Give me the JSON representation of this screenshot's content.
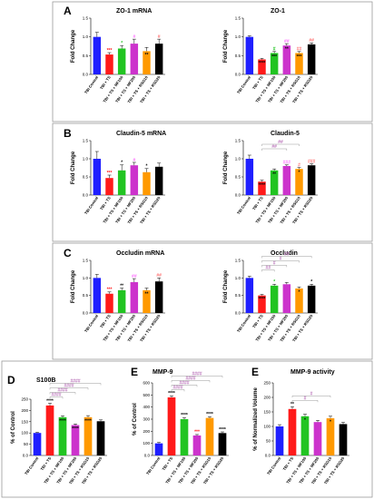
{
  "colors": [
    "#1f1fff",
    "#ff1a1a",
    "#22c422",
    "#cc33cc",
    "#ff9900",
    "#000000"
  ],
  "chart_data": [
    {
      "type": "bar",
      "panel": "A",
      "title": "ZO-1 mRNA",
      "ylabel": "Fold Change",
      "categories": [
        "TBI Control",
        "TBI + TS",
        "TBI + TS + MF100",
        "TBI + TS + MF200",
        "TBI + TS + RSG10",
        "TBI + TS + RSG20"
      ],
      "values": [
        1.0,
        0.53,
        0.69,
        0.82,
        0.62,
        0.82
      ],
      "errors": [
        0.12,
        0.05,
        0.08,
        0.12,
        0.1,
        0.12
      ],
      "ylim": [
        0,
        1.5
      ],
      "yticks": [
        0.0,
        0.5,
        1.0,
        1.5
      ],
      "sig_above": [
        "",
        "***",
        "*",
        "#",
        "",
        "#"
      ],
      "sig_above_colors": [
        "",
        "#ff1a1a",
        "#22c422",
        "#ff80ff",
        "",
        "#ff8080"
      ],
      "sig_inside": [
        "",
        "",
        "",
        "",
        "**",
        ""
      ]
    },
    {
      "type": "bar",
      "panel": "",
      "title": "ZO-1",
      "ylabel": "Fold Change",
      "categories": [
        "TBI Control",
        "TBI + TS",
        "TBI + TS + MF100",
        "TBI + TS + MF200",
        "TBI + TS + RSG10",
        "TBI + TS + RSG20"
      ],
      "values": [
        1.0,
        0.4,
        0.57,
        0.77,
        0.57,
        0.8
      ],
      "errors": [
        0.03,
        0.03,
        0.04,
        0.05,
        0.04,
        0.04
      ],
      "ylim": [
        0,
        1.5
      ],
      "yticks": [
        0.0,
        0.5,
        1.0,
        1.5
      ],
      "sig_above": [
        "",
        "",
        "#",
        "##",
        "##",
        "##"
      ],
      "sig_above_colors": [
        "",
        "",
        "#22c422",
        "#ff80ff",
        "#ff8080",
        "#ff8080"
      ],
      "sig_inside": [
        "",
        "****",
        "***",
        "**",
        "***",
        ""
      ]
    },
    {
      "type": "bar",
      "panel": "B",
      "title": "Claudin-5 mRNA",
      "ylabel": "Fold Change",
      "categories": [
        "TBI Control",
        "TBI + TS",
        "TBI + TS + MF100",
        "TBI + TS + MF200",
        "TBI + TS + RSG10",
        "TBI + TS + RSG20"
      ],
      "values": [
        1.0,
        0.47,
        0.68,
        0.82,
        0.63,
        0.78
      ],
      "errors": [
        0.2,
        0.08,
        0.15,
        0.08,
        0.1,
        0.1
      ],
      "ylim": [
        0,
        1.5
      ],
      "yticks": [
        0.0,
        0.5,
        1.0,
        1.5
      ],
      "sig_above": [
        "",
        "***",
        "*",
        "#",
        "*",
        ""
      ],
      "sig_above_colors": [
        "",
        "#ff1a1a",
        "#000000",
        "#ff80ff",
        "#000000",
        ""
      ],
      "sig_inside": [
        "",
        "",
        "",
        "",
        "",
        ""
      ]
    },
    {
      "type": "bar",
      "panel": "",
      "title": "Claudin-5",
      "ylabel": "Fold Change",
      "categories": [
        "TBI Control",
        "TBI + TS",
        "TBI + TS + MF100",
        "TBI + TS + MF200",
        "TBI + TS + RSG10",
        "TBI + TS + RSG20"
      ],
      "values": [
        1.0,
        0.37,
        0.68,
        0.8,
        0.72,
        0.82
      ],
      "errors": [
        0.1,
        0.04,
        0.04,
        0.03,
        0.04,
        0.04
      ],
      "ylim": [
        0,
        1.5
      ],
      "yticks": [
        0.0,
        0.5,
        1.0,
        1.5
      ],
      "sig_above": [
        "",
        "",
        "",
        "###",
        "#",
        "###"
      ],
      "sig_above_colors": [
        "",
        "",
        "",
        "#ff80ff",
        "#ff8080",
        "#ff8080"
      ],
      "sig_inside": [
        "",
        "****",
        "**",
        "",
        "*",
        "*"
      ],
      "brackets": [
        {
          "from": 1,
          "to": 3,
          "label": "##"
        },
        {
          "from": 1,
          "to": 4,
          "label": "##"
        }
      ]
    },
    {
      "type": "bar",
      "panel": "C",
      "title": "Occludin mRNA",
      "ylabel": "Fold Change",
      "categories": [
        "TBI Control",
        "TBI + TS",
        "TBI + TS + MF100",
        "TBI + TS + MF200",
        "TBI + TS + RSG10",
        "TBI + TS + RSG20"
      ],
      "values": [
        1.0,
        0.55,
        0.65,
        0.88,
        0.65,
        0.9
      ],
      "errors": [
        0.1,
        0.05,
        0.06,
        0.1,
        0.06,
        0.1
      ],
      "ylim": [
        0,
        1.5
      ],
      "yticks": [
        0.0,
        0.5,
        1.0,
        1.5
      ],
      "sig_above": [
        "",
        "***",
        "**",
        "##",
        "",
        "##"
      ],
      "sig_above_colors": [
        "",
        "#ff1a1a",
        "#000000",
        "#ff80ff",
        "",
        "#ff8080"
      ],
      "sig_inside": [
        "",
        "",
        "",
        "",
        "**",
        ""
      ]
    },
    {
      "type": "bar",
      "panel": "",
      "title": "Occludin",
      "ylabel": "Fold Change",
      "categories": [
        "TBI Control",
        "TBI + TS",
        "TBI + TS + MF100",
        "TBI + TS + MF200",
        "TBI + TS + RSG10",
        "TBI + TS + RSG20"
      ],
      "values": [
        1.0,
        0.5,
        0.78,
        0.82,
        0.7,
        0.78
      ],
      "errors": [
        0.05,
        0.03,
        0.04,
        0.05,
        0.04,
        0.04
      ],
      "ylim": [
        0,
        1.5
      ],
      "yticks": [
        0.0,
        0.5,
        1.0,
        1.5
      ],
      "sig_above": [
        "",
        "",
        "*",
        "",
        "",
        "*"
      ],
      "sig_above_colors": [
        "",
        "",
        "#22c422",
        "",
        "",
        "#000000"
      ],
      "sig_inside": [
        "",
        "****",
        "",
        "",
        "*",
        ""
      ],
      "brackets": [
        {
          "from": 1,
          "to": 2,
          "label": "##"
        },
        {
          "from": 1,
          "to": 3,
          "label": "#"
        },
        {
          "from": 1,
          "to": 4,
          "label": "#"
        },
        {
          "from": 1,
          "to": 5,
          "label": "##"
        }
      ]
    },
    {
      "type": "bar",
      "panel": "D",
      "title": "S100B",
      "ylabel": "% of Control",
      "categories": [
        "TBI Control",
        "TBI + TS",
        "TBI + TS + MF100",
        "TBI + TS + MF200",
        "TBI + TS + RSG10",
        "TBI + TS + RSG20"
      ],
      "values": [
        100,
        222,
        170,
        135,
        170,
        152
      ],
      "errors": [
        3,
        10,
        6,
        5,
        7,
        6
      ],
      "ylim": [
        0,
        250
      ],
      "yticks": [
        0,
        50,
        100,
        150,
        200,
        250
      ],
      "sig_above": [
        "",
        "****",
        "",
        "",
        "",
        ""
      ],
      "sig_above_colors": [
        "",
        "#000000",
        "",
        "",
        "",
        ""
      ],
      "sig_inside": [
        "",
        "",
        "****",
        "****",
        "****",
        "****"
      ],
      "brackets": [
        {
          "from": 1,
          "to": 2,
          "label": "####"
        },
        {
          "from": 1,
          "to": 3,
          "label": "####"
        },
        {
          "from": 1,
          "to": 4,
          "label": "####"
        },
        {
          "from": 1,
          "to": 5,
          "label": "####"
        }
      ]
    },
    {
      "type": "bar",
      "panel": "E",
      "title": "MMP-9",
      "ylabel": "% of Control",
      "categories": [
        "TBI Control",
        "TBI + TS",
        "TBI + TS + MF100",
        "TBI + TS + MF200",
        "TBI + TS + RSG10",
        "TBI + TS + RSG20"
      ],
      "values": [
        100,
        480,
        300,
        165,
        310,
        185
      ],
      "errors": [
        8,
        12,
        12,
        8,
        10,
        10
      ],
      "ylim": [
        0,
        600
      ],
      "yticks": [
        0,
        100,
        200,
        300,
        400,
        500,
        600
      ],
      "sig_above": [
        "",
        "****",
        "****",
        "***",
        "****",
        "****"
      ],
      "sig_above_colors": [
        "",
        "#000000",
        "#000000",
        "#ff1a1a",
        "#000000",
        "#000000"
      ],
      "sig_inside": [
        "",
        "",
        "",
        "",
        "",
        ""
      ],
      "brackets": [
        {
          "from": 1,
          "to": 2,
          "label": "####"
        },
        {
          "from": 1,
          "to": 3,
          "label": "####"
        },
        {
          "from": 1,
          "to": 4,
          "label": "####"
        },
        {
          "from": 1,
          "to": 5,
          "label": "####"
        }
      ]
    },
    {
      "type": "bar",
      "panel": "E",
      "title": "MMP-9 activity",
      "ylabel": "% of Normalized Volume",
      "categories": [
        "TBI Control",
        "TBI + TS",
        "TBI + TS + MF100",
        "TBI + TS + MF200",
        "TBI + TS + RSG10",
        "TBI + TS + RSG20"
      ],
      "values": [
        100,
        160,
        135,
        115,
        128,
        108
      ],
      "errors": [
        6,
        8,
        7,
        6,
        7,
        6
      ],
      "ylim": [
        0,
        250
      ],
      "yticks": [
        0,
        50,
        100,
        150,
        200,
        250
      ],
      "sig_above": [
        "",
        "**",
        "",
        "",
        "",
        ""
      ],
      "sig_above_colors": [
        "",
        "#000000",
        "",
        "",
        "",
        ""
      ],
      "sig_inside": [
        "",
        "",
        "*",
        "",
        "*",
        ""
      ],
      "brackets": [
        {
          "from": 1,
          "to": 3,
          "label": "#"
        },
        {
          "from": 1,
          "to": 4,
          "label": "#"
        }
      ]
    }
  ]
}
